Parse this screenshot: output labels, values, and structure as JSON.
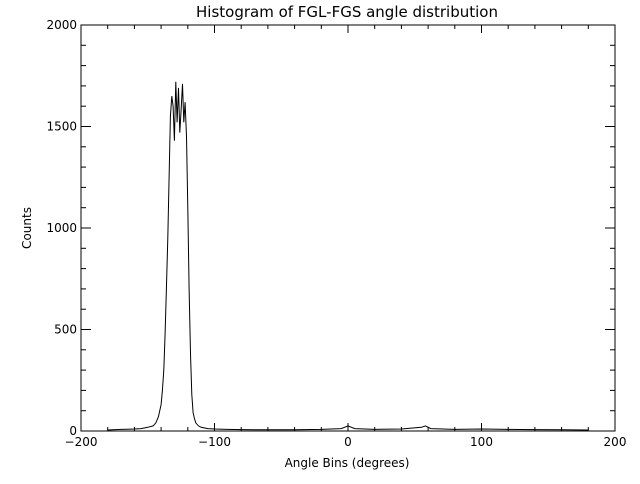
{
  "chart_data": {
    "type": "line",
    "title": "Histogram of FGL-FGS angle distribution",
    "xlabel": "Angle Bins (degrees)",
    "ylabel": "Counts",
    "xlim": [
      -200,
      200
    ],
    "ylim": [
      0,
      2000
    ],
    "xticks": [
      -200,
      -100,
      0,
      100,
      200
    ],
    "xtick_labels": [
      "−200",
      "−100",
      "0",
      "100",
      "200"
    ],
    "yticks": [
      0,
      500,
      1000,
      1500,
      2000
    ],
    "ytick_labels": [
      "0",
      "500",
      "1000",
      "1500",
      "2000"
    ],
    "grid": false,
    "line_color": "#000000",
    "series": [
      {
        "x": [
          -180,
          -170,
          -160,
          -155,
          -150,
          -146,
          -144,
          -142,
          -140,
          -139,
          -138,
          -137,
          -136,
          -135,
          -134,
          -133,
          -132,
          -131,
          -130,
          -129,
          -128,
          -127,
          -126,
          -125,
          -124,
          -123,
          -122,
          -121,
          -120,
          -119,
          -118,
          -117,
          -116,
          -115,
          -114,
          -112,
          -110,
          -105,
          -100,
          -90,
          -80,
          -60,
          -40,
          -20,
          -5,
          0,
          5,
          20,
          40,
          55,
          58,
          62,
          80,
          100,
          120,
          140,
          160,
          180
        ],
        "y": [
          5,
          8,
          10,
          12,
          18,
          25,
          40,
          70,
          130,
          200,
          300,
          480,
          700,
          950,
          1250,
          1550,
          1650,
          1600,
          1430,
          1720,
          1520,
          1690,
          1470,
          1580,
          1710,
          1520,
          1620,
          1450,
          1100,
          700,
          380,
          180,
          90,
          60,
          40,
          25,
          18,
          12,
          10,
          8,
          7,
          6,
          6,
          8,
          12,
          25,
          12,
          8,
          10,
          18,
          25,
          12,
          8,
          10,
          8,
          7,
          6,
          5
        ]
      }
    ]
  }
}
